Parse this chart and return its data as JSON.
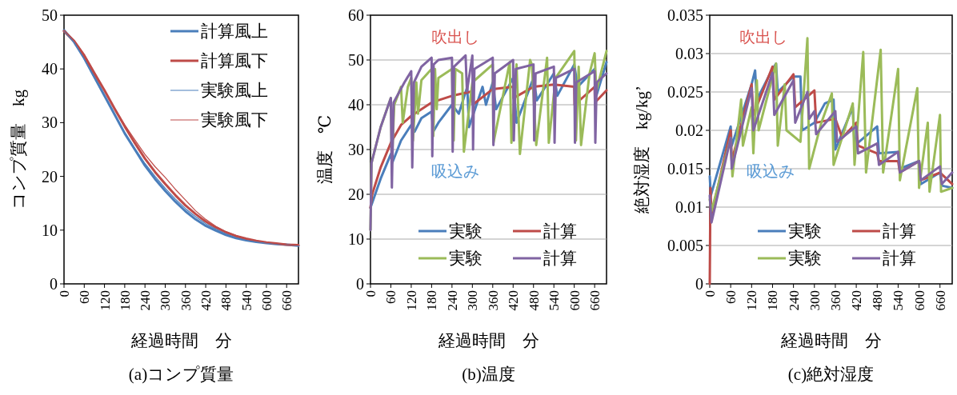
{
  "chart_data": [
    {
      "type": "line",
      "title": "(a)コンプ質量",
      "xlabel": "経過時間　分",
      "ylabel": "コンプ質量　kg",
      "xlim": [
        0,
        695
      ],
      "xticks": [
        0,
        60,
        120,
        180,
        240,
        300,
        360,
        420,
        480,
        540,
        600,
        660
      ],
      "ylim": [
        0,
        50
      ],
      "yticks": [
        0,
        10,
        20,
        30,
        40,
        50
      ],
      "grid": false,
      "legend": "top right",
      "series": [
        {
          "name": "計算風上",
          "color": "#4a7ebb",
          "x": [
            0,
            30,
            60,
            90,
            120,
            150,
            180,
            210,
            240,
            270,
            300,
            330,
            360,
            390,
            420,
            450,
            480,
            510,
            540,
            570,
            600,
            630,
            660,
            695
          ],
          "values": [
            47.2,
            45,
            42,
            38.5,
            35,
            31.5,
            28,
            25,
            22,
            19.5,
            17.3,
            15.3,
            13.5,
            12,
            10.8,
            9.9,
            9.1,
            8.5,
            8.1,
            7.8,
            7.6,
            7.4,
            7.3,
            7.1
          ]
        },
        {
          "name": "計算風下",
          "color": "#be4b48",
          "x": [
            0,
            30,
            60,
            90,
            120,
            150,
            180,
            210,
            240,
            270,
            300,
            330,
            360,
            390,
            420,
            450,
            480,
            510,
            540,
            570,
            600,
            630,
            660,
            695
          ],
          "values": [
            47,
            45.2,
            42.5,
            39.2,
            36,
            32.6,
            29.3,
            26.2,
            23.3,
            20.8,
            18.6,
            16.5,
            14.6,
            13,
            11.6,
            10.5,
            9.6,
            8.9,
            8.4,
            8,
            7.7,
            7.5,
            7.3,
            7.2
          ]
        },
        {
          "name": "実験風上",
          "color": "#4a7ebb",
          "x": [
            0,
            30,
            60,
            90,
            120,
            150,
            180,
            210,
            240,
            270,
            300,
            330,
            360,
            390,
            420,
            450,
            480,
            510,
            540,
            570,
            600,
            630,
            660,
            695
          ],
          "values": [
            47,
            45,
            41.8,
            38.3,
            34.9,
            31.5,
            28.2,
            25.2,
            22.4,
            20,
            17.8,
            15.8,
            14,
            12.5,
            11.2,
            10.2,
            9.3,
            8.6,
            8.1,
            7.8,
            7.6,
            7.4,
            7.3,
            7.1
          ]
        },
        {
          "name": "実験風下",
          "color": "#be4b48",
          "x": [
            0,
            30,
            60,
            90,
            120,
            150,
            180,
            210,
            240,
            270,
            300,
            330,
            360,
            390,
            420,
            450,
            480,
            510,
            540,
            570,
            600,
            630,
            660,
            695
          ],
          "values": [
            47.2,
            45.3,
            42.7,
            39.4,
            36,
            32.7,
            29.6,
            26.8,
            24.1,
            21.8,
            19.8,
            17.6,
            15.6,
            13.6,
            12,
            10.7,
            9.7,
            9,
            8.4,
            8,
            7.7,
            7.5,
            7.3,
            7.2
          ]
        }
      ]
    },
    {
      "type": "line",
      "title": "(b)温度",
      "xlabel": "経過時間　分",
      "ylabel": "温度　℃",
      "xlim": [
        0,
        695
      ],
      "xticks": [
        0,
        60,
        120,
        180,
        240,
        300,
        360,
        420,
        480,
        540,
        600,
        660
      ],
      "ylim": [
        0,
        60
      ],
      "yticks": [
        0,
        10,
        20,
        30,
        40,
        50,
        60
      ],
      "grid": "y",
      "legend": "bottom",
      "annotations": [
        "吹出し",
        "吸込み"
      ],
      "series": [
        {
          "name": "実験",
          "color": "#4a7ebb",
          "x": [
            0,
            30,
            60,
            64,
            90,
            120,
            130,
            150,
            180,
            185,
            200,
            240,
            260,
            285,
            290,
            330,
            340,
            360,
            370,
            420,
            430,
            480,
            490,
            540,
            550,
            600,
            610,
            660,
            665,
            695
          ],
          "values": [
            17,
            23.5,
            29,
            27,
            32,
            35.5,
            34,
            37,
            38.5,
            34,
            36,
            40,
            38,
            44,
            35,
            44,
            40,
            45,
            39,
            46,
            36,
            46,
            41,
            47,
            42,
            49,
            44,
            48,
            42,
            49.5
          ]
        },
        {
          "name": "計算",
          "color": "#be4b48",
          "x": [
            0,
            5,
            30,
            60,
            90,
            120,
            180,
            240,
            300,
            301,
            360,
            420,
            421,
            480,
            540,
            600,
            601,
            660,
            661,
            695
          ],
          "values": [
            17,
            20,
            26,
            31.5,
            35.5,
            37.5,
            40.5,
            42,
            43,
            40,
            43.5,
            44,
            41.5,
            44,
            44.5,
            44,
            40,
            44,
            40.5,
            43.2
          ]
        },
        {
          "name": "実験",
          "color": "#9bbb59",
          "x": [
            0,
            3,
            30,
            60,
            63,
            70,
            90,
            95,
            110,
            120,
            125,
            135,
            140,
            150,
            180,
            185,
            190,
            195,
            200,
            240,
            245,
            250,
            270,
            275,
            300,
            360,
            362,
            410,
            415,
            430,
            440,
            470,
            475,
            488,
            520,
            525,
            545,
            600,
            605,
            613,
            620,
            645,
            660,
            665,
            695
          ],
          "values": [
            12,
            27,
            35,
            41.5,
            27,
            40,
            44,
            36,
            44,
            46,
            32,
            45,
            38,
            45.5,
            48,
            33,
            48,
            39,
            46,
            48,
            32,
            48,
            47,
            29.5,
            45,
            49,
            31.5,
            49.5,
            31.5,
            49,
            29,
            50,
            49,
            31,
            50.5,
            31.5,
            46,
            52,
            32,
            48.5,
            31,
            47,
            51.5,
            43,
            52
          ]
        },
        {
          "name": "計算",
          "color": "#8064a2",
          "x": [
            0,
            3,
            30,
            60,
            63,
            68,
            100,
            120,
            123,
            128,
            150,
            180,
            182,
            186,
            200,
            240,
            242,
            246,
            280,
            284,
            300,
            302,
            306,
            360,
            362,
            366,
            420,
            422,
            428,
            480,
            482,
            486,
            540,
            542,
            546,
            600,
            602,
            606,
            660,
            662,
            666,
            695
          ],
          "values": [
            12,
            27,
            35,
            41.5,
            21.5,
            40.5,
            45,
            47.5,
            26,
            45,
            48.5,
            50.5,
            28.5,
            49,
            50,
            50.5,
            29.5,
            48.5,
            51,
            43,
            51,
            30,
            48,
            50.5,
            31,
            47,
            50,
            32,
            48,
            49,
            32,
            47,
            48.5,
            31.5,
            46,
            48,
            31.5,
            45,
            47.5,
            31.5,
            45,
            47
          ]
        }
      ]
    },
    {
      "type": "line",
      "title": "(c)絶対湿度",
      "xlabel": "経過時間　分",
      "ylabel": "絶対湿度　kg/kg’",
      "xlim": [
        0,
        695
      ],
      "xticks": [
        0,
        60,
        120,
        180,
        240,
        300,
        360,
        420,
        480,
        540,
        600,
        660
      ],
      "ylim": [
        0,
        0.035
      ],
      "yticks": [
        0,
        0.005,
        0.01,
        0.015,
        0.02,
        0.025,
        0.03,
        0.035
      ],
      "grid": "y",
      "legend": "bottom",
      "annotations": [
        "吹出し",
        "吸込み"
      ],
      "series": [
        {
          "name": "実験",
          "color": "#4a7ebb",
          "x": [
            0,
            3,
            60,
            63,
            120,
            130,
            135,
            180,
            190,
            195,
            240,
            260,
            265,
            300,
            330,
            355,
            360,
            410,
            415,
            480,
            485,
            540,
            545,
            600,
            605,
            660,
            665,
            695
          ],
          "values": [
            0.014,
            0.0115,
            0.0205,
            0.018,
            0.026,
            0.0278,
            0.024,
            0.028,
            0.0287,
            0.025,
            0.027,
            0.027,
            0.02,
            0.021,
            0.0235,
            0.024,
            0.0175,
            0.023,
            0.018,
            0.0205,
            0.017,
            0.0172,
            0.015,
            0.016,
            0.013,
            0.0145,
            0.0128,
            0.0125
          ]
        },
        {
          "name": "計算",
          "color": "#be4b48",
          "x": [
            0,
            2,
            5,
            60,
            63,
            120,
            125,
            180,
            185,
            240,
            245,
            300,
            305,
            360,
            380,
            420,
            425,
            480,
            485,
            540,
            545,
            600,
            605,
            660,
            695
          ],
          "values": [
            0,
            0.0125,
            0.009,
            0.02,
            0.016,
            0.026,
            0.022,
            0.0283,
            0.024,
            0.0273,
            0.023,
            0.0252,
            0.021,
            0.0215,
            0.019,
            0.021,
            0.018,
            0.017,
            0.016,
            0.016,
            0.0145,
            0.016,
            0.0135,
            0.0145,
            0.013
          ]
        },
        {
          "name": "実験",
          "color": "#9bbb59",
          "x": [
            0,
            5,
            60,
            65,
            90,
            95,
            120,
            125,
            135,
            140,
            190,
            195,
            215,
            220,
            260,
            280,
            285,
            320,
            350,
            355,
            410,
            415,
            440,
            448,
            490,
            497,
            540,
            545,
            595,
            600,
            625,
            630,
            660,
            663,
            695
          ],
          "values": [
            0.011,
            0.0095,
            0.019,
            0.014,
            0.024,
            0.018,
            0.023,
            0.017,
            0.0265,
            0.02,
            0.0287,
            0.018,
            0.026,
            0.02,
            0.0185,
            0.032,
            0.015,
            0.021,
            0.0248,
            0.0155,
            0.0235,
            0.0155,
            0.0302,
            0.0145,
            0.0305,
            0.0145,
            0.028,
            0.0135,
            0.0255,
            0.0125,
            0.021,
            0.012,
            0.022,
            0.012,
            0.0125
          ]
        },
        {
          "name": "計算",
          "color": "#8064a2",
          "x": [
            0,
            5,
            60,
            63,
            120,
            125,
            180,
            185,
            240,
            245,
            280,
            285,
            300,
            305,
            360,
            365,
            420,
            425,
            480,
            485,
            540,
            545,
            600,
            605,
            660,
            665,
            695
          ],
          "values": [
            0.0115,
            0.008,
            0.019,
            0.015,
            0.0255,
            0.02,
            0.0275,
            0.022,
            0.0265,
            0.021,
            0.025,
            0.0215,
            0.0225,
            0.0195,
            0.0225,
            0.0185,
            0.0205,
            0.017,
            0.0183,
            0.0155,
            0.0172,
            0.0145,
            0.016,
            0.0135,
            0.0153,
            0.013,
            0.0145
          ]
        }
      ]
    }
  ]
}
